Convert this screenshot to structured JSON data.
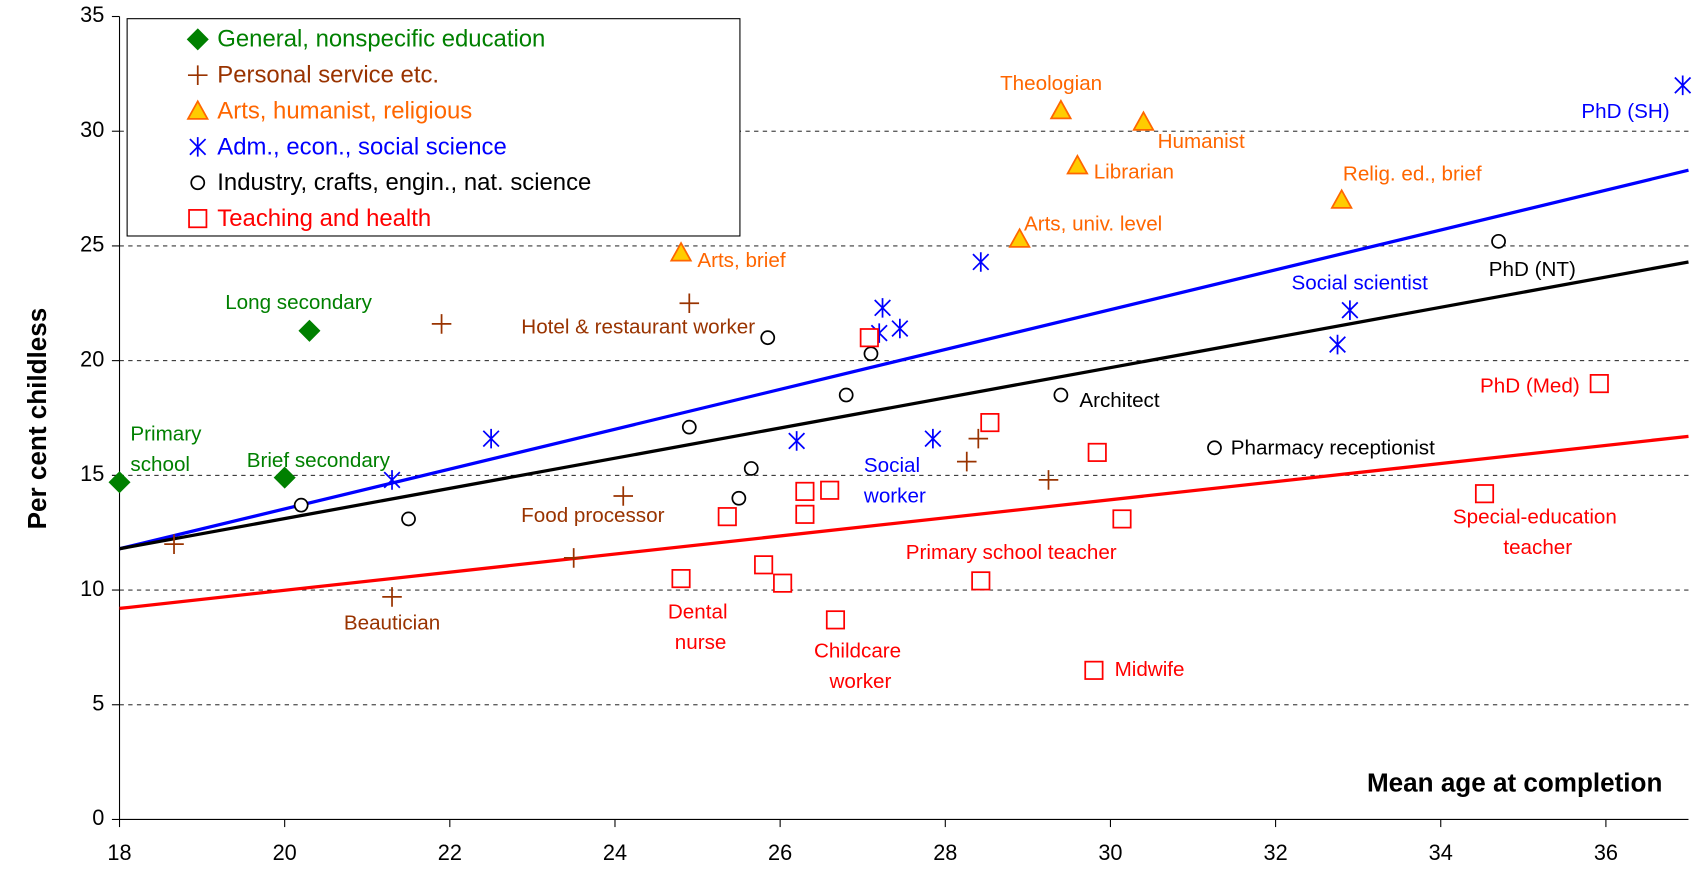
{
  "chart_data": {
    "type": "scatter",
    "xlabel": "Mean age at completion",
    "ylabel": "Per cent childless",
    "xlim": [
      18,
      37
    ],
    "ylim": [
      0,
      35
    ],
    "xticks": [
      18,
      20,
      22,
      24,
      26,
      28,
      30,
      32,
      34,
      36
    ],
    "yticks": [
      0,
      5,
      10,
      15,
      20,
      25,
      30,
      35
    ],
    "grid": true,
    "legend": "upper left",
    "series": [
      {
        "name": "General, nonspecific education",
        "color": "#008000",
        "marker": "diamond",
        "x": [
          18.0,
          20.3,
          20.0
        ],
        "values": [
          14.7,
          21.3,
          14.9
        ],
        "labels": [
          "Primary school",
          "Long secondary",
          "Brief secondary"
        ]
      },
      {
        "name": "Personal service etc.",
        "color": "#993300",
        "marker": "plus",
        "x": [
          18.66,
          21.3,
          21.9,
          23.5,
          24.1,
          24.9,
          28.26,
          28.4,
          29.25
        ],
        "values": [
          12.0,
          9.7,
          21.6,
          11.4,
          14.1,
          22.5,
          15.6,
          16.6,
          14.8
        ],
        "labels": [
          null,
          "Beautician",
          null,
          null,
          "Food processor",
          "Hotel & restaurant worker",
          null,
          null,
          null
        ]
      },
      {
        "name": "Arts, humanist, religious",
        "color": "#ff6600",
        "fill": "#ffcc00",
        "marker": "triangle",
        "x": [
          24.8,
          29.4,
          30.4,
          29.6,
          28.9,
          32.8
        ],
        "values": [
          24.7,
          30.9,
          30.4,
          28.5,
          25.3,
          27.0
        ],
        "labels": [
          "Arts, brief",
          "Theologian",
          "Humanist",
          "Librarian",
          "Arts, univ. level",
          "Relig. ed., brief"
        ]
      },
      {
        "name": "Adm., econ., social science",
        "color": "#0000ff",
        "marker": "asterisk",
        "x": [
          22.5,
          21.3,
          26.2,
          27.24,
          27.2,
          27.45,
          27.85,
          28.43,
          32.9,
          32.75,
          36.93
        ],
        "values": [
          16.6,
          14.8,
          16.5,
          22.3,
          21.2,
          21.4,
          16.6,
          24.3,
          22.2,
          20.7,
          32.0
        ],
        "labels": [
          null,
          null,
          null,
          null,
          null,
          null,
          "Social worker",
          null,
          "Social scientist",
          null,
          "PhD (SH)"
        ]
      },
      {
        "name": "Industry, crafts, engin., nat. science",
        "color": "#000000",
        "marker": "circle",
        "x": [
          20.2,
          21.5,
          24.9,
          25.65,
          25.5,
          25.85,
          26.8,
          27.1,
          29.4,
          31.26,
          34.7
        ],
        "values": [
          13.7,
          13.1,
          17.1,
          15.3,
          14.0,
          21.0,
          18.5,
          20.3,
          18.5,
          16.2,
          25.2
        ],
        "labels": [
          null,
          null,
          null,
          null,
          null,
          null,
          null,
          null,
          "Architect",
          "Pharmacy receptionist",
          "PhD (NT)"
        ]
      },
      {
        "name": "Teaching and health",
        "color": "#ff0000",
        "marker": "square",
        "x": [
          24.8,
          25.36,
          25.8,
          26.03,
          26.3,
          26.3,
          26.6,
          26.67,
          27.08,
          28.43,
          28.54,
          29.84,
          29.8,
          30.14,
          34.53,
          35.92
        ],
        "values": [
          10.5,
          13.2,
          11.1,
          10.3,
          14.3,
          13.3,
          14.35,
          8.7,
          21.0,
          10.4,
          17.3,
          16.0,
          6.5,
          13.1,
          14.2,
          19.0
        ],
        "labels": [
          "Dental nurse",
          null,
          null,
          null,
          null,
          null,
          null,
          "Childcare worker",
          null,
          "Primary school teacher",
          null,
          null,
          "Midwife",
          null,
          "Special-education teacher",
          "PhD (Med)"
        ]
      }
    ],
    "trend_lines": [
      {
        "color": "#0000ff",
        "x": [
          18,
          37
        ],
        "values": [
          11.8,
          28.3
        ]
      },
      {
        "color": "#000000",
        "x": [
          18,
          37
        ],
        "values": [
          11.8,
          24.3
        ]
      },
      {
        "color": "#ff0000",
        "x": [
          18,
          37
        ],
        "values": [
          9.2,
          16.7
        ]
      }
    ]
  }
}
